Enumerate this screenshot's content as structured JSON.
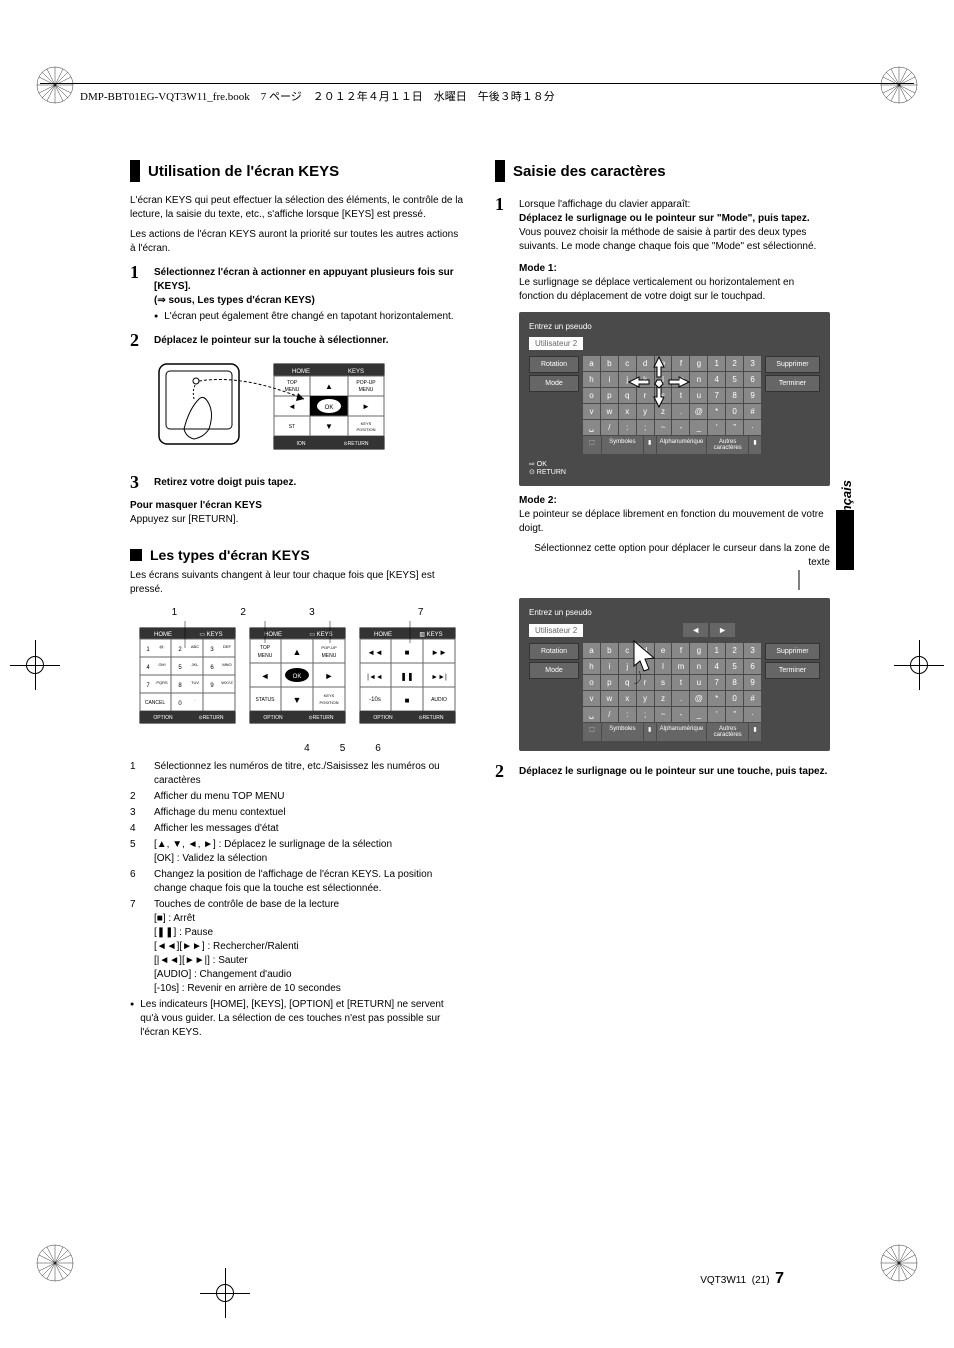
{
  "header_text": "DMP-BBT01EG-VQT3W11_fre.book　7 ページ　２０１２年４月１１日　水曜日　午後３時１８分",
  "left": {
    "heading": "Utilisation de l'écran KEYS",
    "intro1": "L'écran KEYS qui peut effectuer la sélection des éléments, le contrôle de la lecture, la saisie du texte, etc., s'affiche lorsque [KEYS] est pressé.",
    "intro2": "Les actions de l'écran KEYS auront la priorité sur toutes les autres actions à l'écran.",
    "step1": "Sélectionnez l'écran à actionner en appuyant plusieurs fois sur [KEYS].",
    "step1b": "(⇒ sous, Les types d'écran KEYS)",
    "step1c": "L'écran peut également être changé en tapotant horizontalement.",
    "step2": "Déplacez le pointeur sur la touche à sélectionner.",
    "step3": "Retirez votre doigt puis tapez.",
    "mask_title": "Pour masquer l'écran KEYS",
    "mask_text": "Appuyez sur [RETURN].",
    "sub_heading": "Les types d'écran KEYS",
    "sub_intro": "Les écrans suivants changent à leur tour chaque fois que [KEYS] est pressé.",
    "diagram_labels": {
      "n1": "1",
      "n2": "2",
      "n3": "3",
      "n4": "4",
      "n5": "5",
      "n6": "6",
      "n7": "7"
    },
    "keys_panel1": {
      "home": "HOME",
      "keys": "KEYS",
      "r1": [
        "1 @,",
        "2 ABC",
        "3 DEF"
      ],
      "r2": [
        "4 GHI",
        "5 JKL",
        "6 MNO"
      ],
      "r3": [
        "7 PQRS",
        "8 TUV",
        "9 WXYZ"
      ],
      "r4": [
        "CANCEL",
        "0 ·",
        ""
      ],
      "option": "OPTION",
      "return": "RETURN"
    },
    "keys_panel2": {
      "home": "HOME",
      "keys": "KEYS",
      "top": "TOP MENU",
      "up": "▲",
      "popup": "POP-UP MENU",
      "left": "◄",
      "ok": "OK",
      "right": "►",
      "status": "STATUS",
      "down": "▼",
      "pos": "KEYS POSITION",
      "option": "OPTION",
      "return": "RETURN"
    },
    "keys_panel3": {
      "home": "HOME",
      "keys": "KEYS",
      "rew": "◄◄",
      "stop": "■",
      "ff": "►►",
      "prev": "|◄◄",
      "pause": "❚❚",
      "next": "►►|",
      "back10": "-10s",
      "stop2": "■",
      "audio": "AUDIO",
      "option": "OPTION",
      "return": "RETURN"
    },
    "list1": "Sélectionnez les numéros de titre, etc./Saisissez les numéros ou caractères",
    "list2": "Afficher du menu TOP MENU",
    "list3": "Affichage du menu contextuel",
    "list4": "Afficher les messages d'état",
    "list5a": "[▲, ▼, ◄, ►] : Déplacez le surlignage de la sélection",
    "list5b": "[OK] : Validez la sélection",
    "list6": "Changez la position de l'affichage de l'écran KEYS. La position change chaque fois que la touche est sélectionnée.",
    "list7": "Touches de contrôle de base de la lecture",
    "list7a": "[■] : Arrêt",
    "list7b": "[❚❚] : Pause",
    "list7c": "[◄◄][►►] : Rechercher/Ralenti",
    "list7d": "[|◄◄][►►|] : Sauter",
    "list7e": "[AUDIO] : Changement d'audio",
    "list7f": "[-10s] : Revenir en arrière de 10 secondes",
    "bullet_end": "Les indicateurs [HOME], [KEYS], [OPTION] et [RETURN] ne servent qu'à vous guider. La sélection de ces touches n'est pas possible sur l'écran KEYS."
  },
  "right": {
    "heading": "Saisie des caractères",
    "step1": "Lorsque l'affichage du clavier apparaît:",
    "step1b": "Déplacez le surlignage ou le pointeur sur \"Mode\", puis tapez.",
    "step1c": "Vous pouvez choisir la méthode de saisie à partir des deux types suivants. Le mode change chaque fois que \"Mode\" est sélectionné.",
    "mode1_title": "Mode 1:",
    "mode1_text": "Le surlignage se déplace verticalement ou horizontalement en fonction du déplacement de votre doigt sur le touchpad.",
    "kb": {
      "prompt": "Entrez un pseudo",
      "input": "Utilisateur 2",
      "rotation": "Rotation",
      "mode": "Mode",
      "delete": "Supprimer",
      "finish": "Terminer",
      "r1": [
        "a",
        "b",
        "c",
        "d",
        "e",
        "f",
        "g",
        "1",
        "2",
        "3"
      ],
      "r2": [
        "h",
        "i",
        "j",
        "k",
        "l",
        "m",
        "n",
        "4",
        "5",
        "6"
      ],
      "r3": [
        "o",
        "p",
        "q",
        "r",
        "s",
        "t",
        "u",
        "7",
        "8",
        "9"
      ],
      "r4": [
        "v",
        "w",
        "x",
        "y",
        "z",
        ".",
        "@",
        "*",
        "0",
        "#"
      ],
      "r5": [
        "␣",
        "/",
        ":",
        ";",
        "~",
        "-",
        "_",
        "'",
        "\"",
        "·"
      ],
      "sym": "Symboles",
      "alpha": "Alphanumérique",
      "other": "Autres caractères",
      "ok": "OK",
      "return": "RETURN"
    },
    "mode2_title": "Mode 2:",
    "mode2_text": "Le pointeur se déplace librement en fonction du mouvement de votre doigt.",
    "mode2_note": "Sélectionnez cette option pour déplacer le curseur dans la zone de texte",
    "step2": "Déplacez le surlignage ou le pointeur sur une touche, puis tapez."
  },
  "side_tab": "Français",
  "footer": {
    "code": "VQT3W11",
    "paren": "(21)",
    "page": "7"
  }
}
